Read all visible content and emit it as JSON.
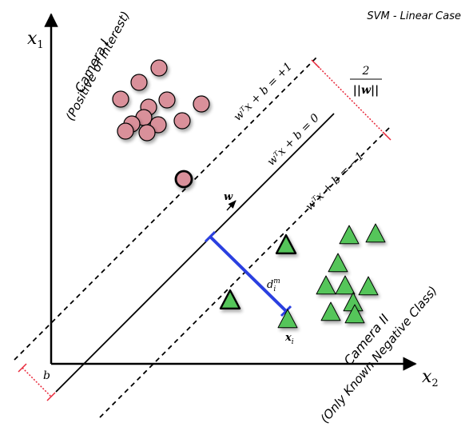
{
  "title": "SVM - Linear Case",
  "axes": {
    "x_label": "x",
    "x_sub": "2",
    "y_label": "x",
    "y_sub": "1"
  },
  "camera1": {
    "line1": "Camera I",
    "line2": "(Positive of Interest)"
  },
  "camera2": {
    "line1": "Camera II",
    "line2": "(Only Known Negative Class)"
  },
  "hyperplanes": {
    "upper": "wᵀx + b = +1",
    "middle": "wᵀx + b = 0",
    "lower": "wᵀx + b = −1"
  },
  "margin_label": {
    "numerator": "2",
    "denominator": "||w||"
  },
  "normal_label": "w",
  "offset_label": "b",
  "distance_label": {
    "base": "d",
    "sub": "i",
    "sup": "m"
  },
  "sample_label": {
    "base": "x",
    "sub": "i"
  },
  "colors": {
    "positive_fill": "#d9909a",
    "negative_fill": "#55c55a",
    "distance_line": "#2a3fe0",
    "margin_dotted": "#e8283a",
    "ink": "#000000"
  },
  "icons": {
    "positive": "circle-marker",
    "negative": "triangle-marker",
    "normal": "arrow-icon"
  }
}
